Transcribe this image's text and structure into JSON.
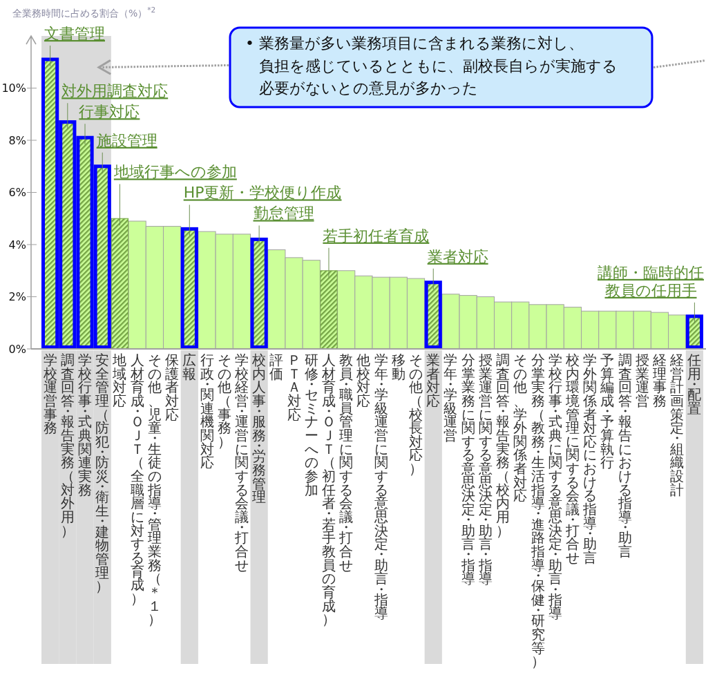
{
  "chart_data": {
    "type": "bar",
    "ylabel": "全業務時間に占める割合（%）$^{*2}$",
    "categories": [
      "学校運営事務",
      "調査回答・報告実務（対外用）",
      "学校行事・式典関連実務",
      "安全管理（防犯・防災・衛生・建物管理）",
      "地域対応",
      "人材育成・ＯＪＴ（全職層に対する育成）",
      "その他、児童・生徒の指導・管理業務（＊１）",
      "保護者対応",
      "広報",
      "行政・関連機関対応",
      "その他（事務）",
      "学校経営・運営に関する会議・打合せ",
      "校内人事・服務・労務管理",
      "評価",
      "ＰＴＡ対応",
      "研修・セミナーへの参加",
      "人材育成・ＯＪＴ（初任者・若手教員の育成）",
      "教員・職員管理に関する会議・打合せ",
      "他校対応",
      "学年・学級運営に関する意思決定・助言・指導",
      "移動",
      "その他（校長対応）",
      "業者対応",
      "学年・学級運営",
      "分掌業務に関する意思決定・助言・指導",
      "授業運営に関する意思決定・助言・指導",
      "調査回答・報告実務（校内用）",
      "その他、学外関係者対応",
      "分掌実務（教務・生活指導・進路指導・保健・研究等）",
      "学校行事・式典に関する意思決定・助言・指導",
      "校内環境管理に関する会議・打合せ",
      "学外関係者対応における指導・助言",
      "予算編成・予算執行",
      "調査回答・報告における指導・助言",
      "授業運営",
      "経理事務",
      "経営計画策定・組織設計",
      "任用・配置"
    ],
    "series": [
      {
        "color": "#ccff99",
        "values": [
          null,
          null,
          null,
          null,
          null,
          4.9,
          4.7,
          4.7,
          null,
          4.5,
          4.4,
          4.4,
          null,
          3.8,
          3.5,
          3.4,
          null,
          3.0,
          2.8,
          2.75,
          2.75,
          2.7,
          null,
          2.1,
          2.05,
          2.0,
          1.8,
          1.8,
          1.7,
          1.7,
          1.6,
          1.45,
          1.45,
          1.45,
          1.45,
          1.4,
          1.3,
          null
        ]
      },
      {
        "color": "#76a546",
        "values": [
          null,
          null,
          null,
          null,
          5.0,
          null,
          null,
          null,
          null,
          null,
          null,
          null,
          null,
          null,
          null,
          null,
          3.0,
          null,
          null,
          null,
          null,
          null,
          null,
          null,
          null,
          null,
          null,
          null,
          null,
          null,
          null,
          null,
          null,
          null,
          null,
          null,
          null,
          null
        ]
      },
      {
        "color": "#0000ff",
        "values": [
          11.1,
          8.7,
          8.1,
          7.0,
          null,
          null,
          null,
          null,
          4.6,
          null,
          null,
          null,
          4.2,
          null,
          null,
          null,
          null,
          null,
          null,
          null,
          null,
          null,
          2.55,
          null,
          null,
          null,
          null,
          null,
          null,
          null,
          null,
          null,
          null,
          null,
          null,
          null,
          null,
          1.25
        ]
      }
    ],
    "ylim": [
      0,
      12
    ],
    "yticks": [
      {
        "value": 0,
        "label": "0%"
      },
      {
        "value": 2,
        "label": "2%"
      },
      {
        "value": 4,
        "label": "4%"
      },
      {
        "value": 6,
        "label": "6%"
      },
      {
        "value": 8,
        "label": "8%"
      },
      {
        "value": 10,
        "label": "10%"
      }
    ],
    "bands": [
      {
        "axis": "x",
        "from": "学校運営事務",
        "to": "安全管理（防犯・防災・衛生・建物管理）",
        "color": "#dadada"
      }
    ],
    "annotations": [
      "• 業務量が多い業務項目に含まれる業務に対し、負担を感じているとともに、副校長自らが実施する必要がないとの意見が多かった",
      {
        "text": "文書管理",
        "x": "学校運営事務",
        "y": 11.1
      },
      {
        "text": "対外用調査対応",
        "x": "調査回答・報告実務（対外用）",
        "y": 8.7
      },
      {
        "text": "行事対応",
        "x": "学校行事・式典関連実務",
        "y": 8.1
      },
      {
        "text": "施設管理",
        "x": "安全管理（防犯・防災・衛生・建物管理）",
        "y": 7.0
      },
      {
        "text": "地域行事への参加",
        "x": "地域対応",
        "y": 5.0
      },
      {
        "text": "HP更新・学校便り作成",
        "x": "広報",
        "y": 4.6
      },
      {
        "text": "勤怠管理",
        "x": "校内人事・服務・労務管理",
        "y": 4.2
      },
      {
        "text": "若手初任者育成",
        "x": "人材育成・ＯＪＴ（初任者・若手教員の育成）",
        "y": 3.0
      },
      {
        "text": "業者対応",
        "x": "業者対応",
        "y": 2.55
      },
      {
        "text": "講師・臨時的任教員の任用手",
        "x": "任用・配置",
        "y": 1.25
      }
    ]
  }
}
